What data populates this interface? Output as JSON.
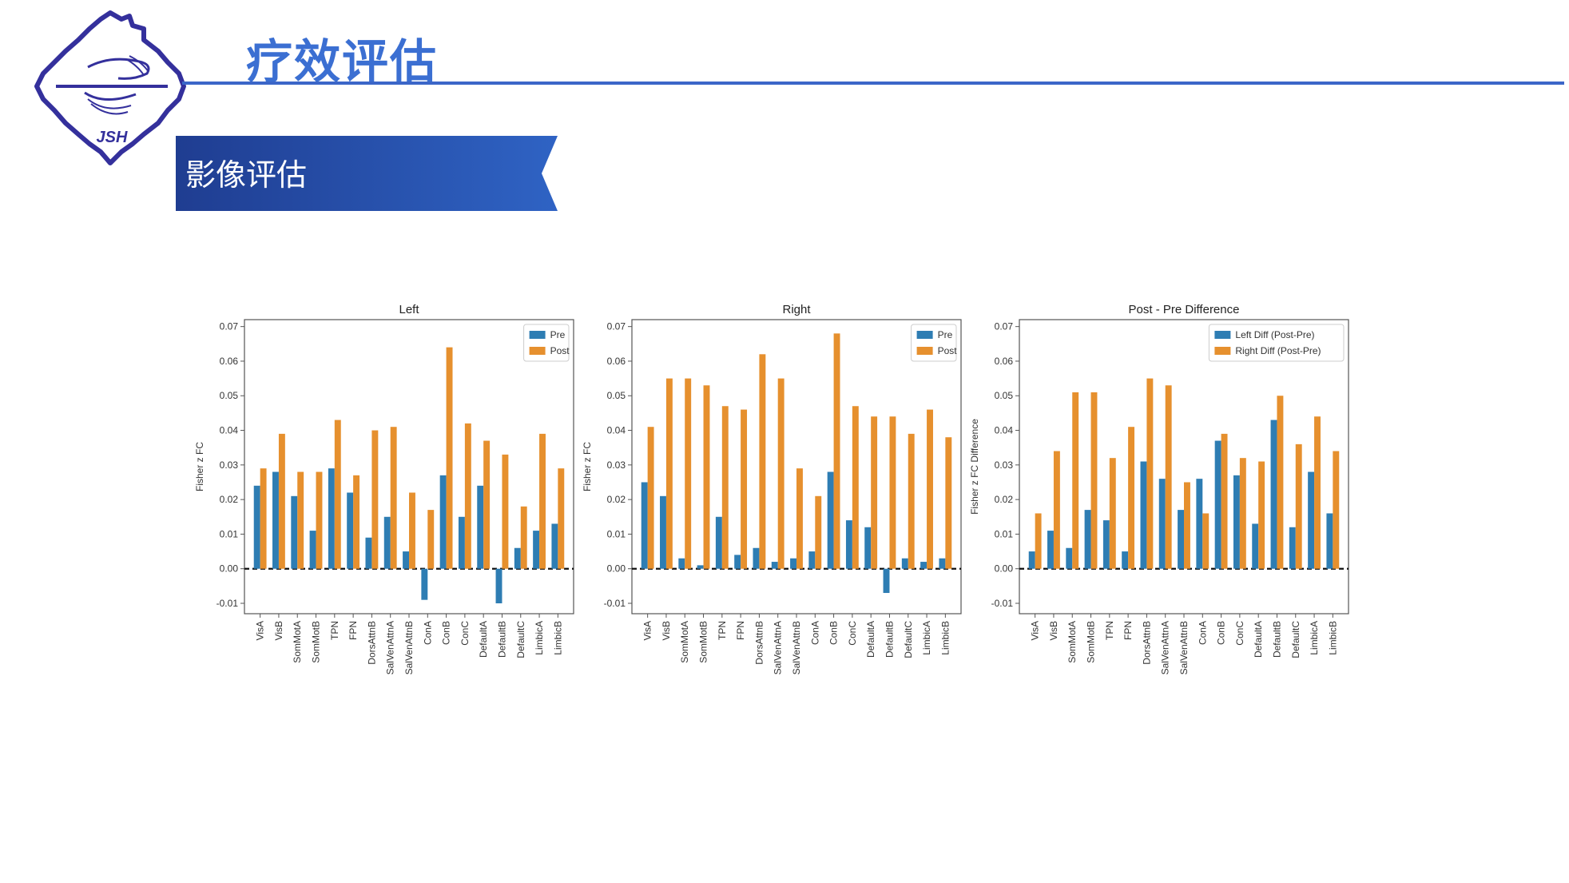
{
  "header": {
    "title": "疗效评估",
    "section_label": "影像评估",
    "logo_text": "JSH"
  },
  "colors": {
    "accent": "#3b66c8",
    "banner_dark": "#1f3d91",
    "banner_light": "#2f63c4",
    "pre": "#2e7db3",
    "post": "#e6902e"
  },
  "chart_data": [
    {
      "type": "bar",
      "title": "Left",
      "ylabel": "Fisher z FC",
      "xlabel": "",
      "ylim": [
        -0.013,
        0.072
      ],
      "yticks": [
        "0.07",
        "0.06",
        "0.05",
        "0.04",
        "0.03",
        "0.02",
        "0.01",
        "0.00",
        "-0.01"
      ],
      "categories": [
        "VisA",
        "VisB",
        "SomMotA",
        "SomMotB",
        "TPN",
        "FPN",
        "DorsAttnB",
        "SalVenAttnA",
        "SalVenAttnB",
        "ConA",
        "ConB",
        "ConC",
        "DefaultA",
        "DefaultB",
        "DefaultC",
        "LimbicA",
        "LimbicB"
      ],
      "series": [
        {
          "name": "Pre",
          "values": [
            0.024,
            0.028,
            0.021,
            0.011,
            0.029,
            0.022,
            0.009,
            0.015,
            0.005,
            -0.009,
            0.027,
            0.015,
            0.024,
            -0.01,
            0.006,
            0.011,
            0.013
          ]
        },
        {
          "name": "Post",
          "values": [
            0.029,
            0.039,
            0.028,
            0.028,
            0.043,
            0.027,
            0.04,
            0.041,
            0.022,
            0.017,
            0.064,
            0.042,
            0.037,
            0.033,
            0.018,
            0.039,
            0.029
          ]
        }
      ],
      "legend": [
        "Pre",
        "Post"
      ]
    },
    {
      "type": "bar",
      "title": "Right",
      "ylabel": "Fisher z FC",
      "xlabel": "",
      "ylim": [
        -0.013,
        0.072
      ],
      "yticks": [
        "0.07",
        "0.06",
        "0.05",
        "0.04",
        "0.03",
        "0.02",
        "0.01",
        "0.00",
        "-0.01"
      ],
      "categories": [
        "VisA",
        "VisB",
        "SomMotA",
        "SomMotB",
        "TPN",
        "FPN",
        "DorsAttnB",
        "SalVenAttnA",
        "SalVenAttnB",
        "ConA",
        "ConB",
        "ConC",
        "DefaultA",
        "DefaultB",
        "DefaultC",
        "LimbicA",
        "LimbicB"
      ],
      "series": [
        {
          "name": "Pre",
          "values": [
            0.025,
            0.021,
            0.003,
            0.001,
            0.015,
            0.004,
            0.006,
            0.002,
            0.003,
            0.005,
            0.028,
            0.014,
            0.012,
            -0.007,
            0.003,
            0.002,
            0.003
          ]
        },
        {
          "name": "Post",
          "values": [
            0.041,
            0.055,
            0.055,
            0.053,
            0.047,
            0.046,
            0.062,
            0.055,
            0.029,
            0.021,
            0.068,
            0.047,
            0.044,
            0.044,
            0.039,
            0.046,
            0.038
          ]
        }
      ],
      "legend": [
        "Pre",
        "Post"
      ]
    },
    {
      "type": "bar",
      "title": "Post - Pre Difference",
      "ylabel": "Fisher z FC Difference",
      "xlabel": "",
      "ylim": [
        -0.013,
        0.072
      ],
      "yticks": [
        "0.07",
        "0.06",
        "0.05",
        "0.04",
        "0.03",
        "0.02",
        "0.01",
        "0.00",
        "-0.01"
      ],
      "categories": [
        "VisA",
        "VisB",
        "SomMotA",
        "SomMotB",
        "TPN",
        "FPN",
        "DorsAttnB",
        "SalVenAttnA",
        "SalVenAttnB",
        "ConA",
        "ConB",
        "ConC",
        "DefaultA",
        "DefaultB",
        "DefaultC",
        "LimbicA",
        "LimbicB"
      ],
      "series": [
        {
          "name": "Left Diff (Post-Pre)",
          "values": [
            0.005,
            0.011,
            0.006,
            0.017,
            0.014,
            0.005,
            0.031,
            0.026,
            0.017,
            0.026,
            0.037,
            0.027,
            0.013,
            0.043,
            0.012,
            0.028,
            0.016
          ]
        },
        {
          "name": "Right Diff (Post-Pre)",
          "values": [
            0.016,
            0.034,
            0.051,
            0.051,
            0.032,
            0.041,
            0.055,
            0.053,
            0.025,
            0.016,
            0.039,
            0.032,
            0.031,
            0.05,
            0.036,
            0.044,
            0.034
          ]
        }
      ],
      "legend": [
        "Left Diff (Post-Pre)",
        "Right Diff (Post-Pre)"
      ]
    }
  ]
}
